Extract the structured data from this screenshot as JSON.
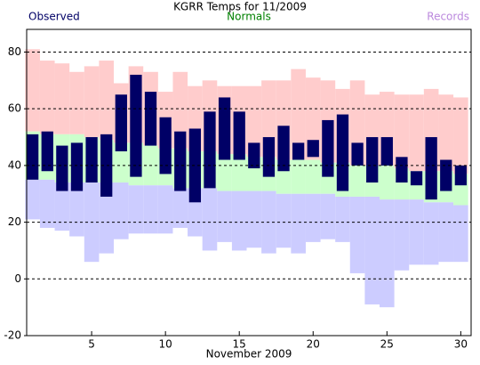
{
  "chart_data": {
    "type": "range_bar",
    "title": "KGRR Temps for 11/2009",
    "x_label": "November 2009",
    "x": [
      1,
      2,
      3,
      4,
      5,
      6,
      7,
      8,
      9,
      10,
      11,
      12,
      13,
      14,
      15,
      16,
      17,
      18,
      19,
      20,
      21,
      22,
      23,
      24,
      25,
      26,
      27,
      28,
      29,
      30
    ],
    "xlim": [
      0.6,
      30.7
    ],
    "xticks": [
      5,
      10,
      15,
      20,
      25,
      30
    ],
    "ylim": [
      -20,
      88
    ],
    "yticks": [
      -20,
      0,
      20,
      40,
      60,
      80
    ],
    "grid": true,
    "series": [
      {
        "name": "Observed",
        "color": "#000066",
        "high": [
          51,
          52,
          47,
          48,
          50,
          51,
          65,
          72,
          66,
          57,
          52,
          53,
          59,
          64,
          59,
          48,
          50,
          54,
          48,
          49,
          56,
          58,
          48,
          50,
          50,
          43,
          38,
          50,
          42,
          40
        ],
        "low": [
          35,
          38,
          31,
          31,
          34,
          29,
          45,
          36,
          47,
          37,
          31,
          27,
          32,
          42,
          42,
          39,
          36,
          38,
          42,
          43,
          36,
          31,
          40,
          34,
          40,
          34,
          33,
          28,
          31,
          33
        ]
      },
      {
        "name": "Normals",
        "color": "#008000",
        "fill": "#ccffcc",
        "high": [
          52,
          51,
          51,
          51,
          50,
          49,
          48,
          48,
          47,
          46,
          46,
          45,
          45,
          44,
          44,
          43,
          43,
          42,
          42,
          42,
          41,
          41,
          40,
          40,
          40,
          39,
          38,
          38,
          38,
          37
        ],
        "low": [
          35,
          35,
          34,
          34,
          34,
          34,
          34,
          33,
          33,
          33,
          32,
          32,
          32,
          31,
          31,
          31,
          31,
          30,
          30,
          30,
          30,
          29,
          29,
          29,
          28,
          28,
          28,
          27,
          27,
          26
        ]
      },
      {
        "name": "Records",
        "color": "#bb88dd",
        "high_fill": "#ffcccc",
        "low_fill": "#ccccff",
        "high": [
          81,
          77,
          76,
          73,
          75,
          77,
          69,
          75,
          73,
          66,
          73,
          68,
          70,
          68,
          68,
          68,
          70,
          70,
          74,
          71,
          70,
          67,
          70,
          65,
          66,
          65,
          65,
          67,
          65,
          64
        ],
        "low": [
          21,
          18,
          17,
          15,
          6,
          9,
          14,
          16,
          16,
          16,
          18,
          15,
          10,
          13,
          10,
          11,
          9,
          11,
          9,
          13,
          14,
          13,
          2,
          -9,
          -10,
          3,
          5,
          5,
          6,
          6
        ]
      }
    ]
  }
}
